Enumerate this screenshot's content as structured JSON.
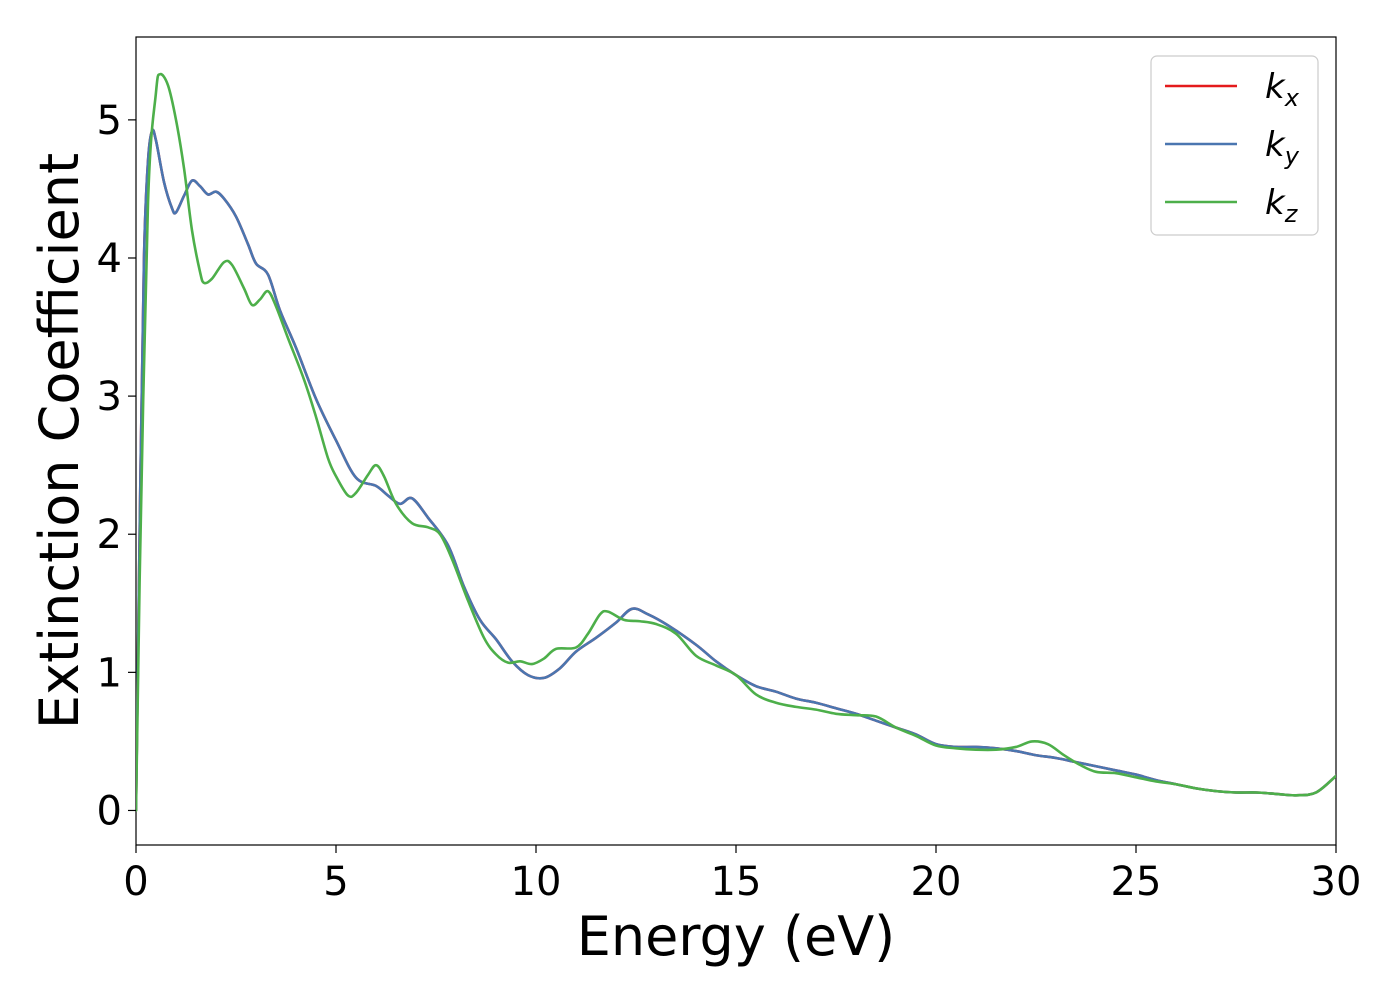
{
  "chart_data": {
    "type": "line",
    "title": "",
    "xlabel": "Energy (eV)",
    "ylabel": "Extinction Coefficient",
    "xlim": [
      0,
      30
    ],
    "ylim": [
      -0.25,
      5.6
    ],
    "xticks": [
      0,
      5,
      10,
      15,
      20,
      25,
      30
    ],
    "yticks": [
      0,
      1,
      2,
      3,
      4,
      5
    ],
    "grid": false,
    "legend_position": "top-right",
    "series": [
      {
        "name": "k_x",
        "base": "k",
        "sub": "x",
        "color": "#e41a1c",
        "points": [
          [
            0,
            0
          ],
          [
            0.1,
            2.2
          ],
          [
            0.2,
            4.0
          ],
          [
            0.3,
            4.7
          ],
          [
            0.4,
            4.92
          ],
          [
            0.5,
            4.85
          ],
          [
            0.7,
            4.55
          ],
          [
            0.9,
            4.36
          ],
          [
            1.0,
            4.33
          ],
          [
            1.2,
            4.45
          ],
          [
            1.4,
            4.56
          ],
          [
            1.6,
            4.52
          ],
          [
            1.8,
            4.46
          ],
          [
            2.0,
            4.48
          ],
          [
            2.2,
            4.43
          ],
          [
            2.5,
            4.3
          ],
          [
            2.8,
            4.1
          ],
          [
            3.0,
            3.96
          ],
          [
            3.3,
            3.88
          ],
          [
            3.6,
            3.62
          ],
          [
            4.0,
            3.35
          ],
          [
            4.5,
            2.98
          ],
          [
            5.0,
            2.68
          ],
          [
            5.5,
            2.41
          ],
          [
            6.0,
            2.35
          ],
          [
            6.3,
            2.28
          ],
          [
            6.6,
            2.22
          ],
          [
            6.9,
            2.26
          ],
          [
            7.3,
            2.12
          ],
          [
            7.8,
            1.92
          ],
          [
            8.2,
            1.62
          ],
          [
            8.6,
            1.38
          ],
          [
            9.0,
            1.24
          ],
          [
            9.4,
            1.08
          ],
          [
            9.8,
            0.98
          ],
          [
            10.2,
            0.96
          ],
          [
            10.6,
            1.03
          ],
          [
            11.0,
            1.15
          ],
          [
            11.5,
            1.25
          ],
          [
            12.0,
            1.36
          ],
          [
            12.4,
            1.46
          ],
          [
            12.8,
            1.42
          ],
          [
            13.3,
            1.34
          ],
          [
            14.0,
            1.2
          ],
          [
            14.5,
            1.08
          ],
          [
            15.0,
            0.98
          ],
          [
            15.5,
            0.9
          ],
          [
            16.0,
            0.86
          ],
          [
            16.5,
            0.81
          ],
          [
            17.0,
            0.78
          ],
          [
            17.5,
            0.74
          ],
          [
            18.0,
            0.7
          ],
          [
            18.5,
            0.65
          ],
          [
            19.0,
            0.6
          ],
          [
            19.5,
            0.55
          ],
          [
            20.0,
            0.48
          ],
          [
            20.5,
            0.46
          ],
          [
            21.0,
            0.46
          ],
          [
            21.5,
            0.45
          ],
          [
            22.0,
            0.43
          ],
          [
            22.5,
            0.4
          ],
          [
            23.0,
            0.38
          ],
          [
            23.5,
            0.35
          ],
          [
            24.0,
            0.32
          ],
          [
            24.5,
            0.29
          ],
          [
            25.0,
            0.26
          ],
          [
            25.5,
            0.22
          ],
          [
            26.0,
            0.19
          ],
          [
            26.5,
            0.16
          ],
          [
            27.0,
            0.14
          ],
          [
            27.5,
            0.13
          ],
          [
            28.0,
            0.13
          ],
          [
            28.5,
            0.12
          ],
          [
            29.0,
            0.11
          ],
          [
            29.5,
            0.13
          ],
          [
            30.0,
            0.25
          ]
        ]
      },
      {
        "name": "k_y",
        "base": "k",
        "sub": "y",
        "color": "#4a76b0",
        "points": [
          [
            0,
            0
          ],
          [
            0.1,
            2.2
          ],
          [
            0.2,
            4.0
          ],
          [
            0.3,
            4.7
          ],
          [
            0.4,
            4.92
          ],
          [
            0.5,
            4.85
          ],
          [
            0.7,
            4.55
          ],
          [
            0.9,
            4.36
          ],
          [
            1.0,
            4.33
          ],
          [
            1.2,
            4.45
          ],
          [
            1.4,
            4.56
          ],
          [
            1.6,
            4.52
          ],
          [
            1.8,
            4.46
          ],
          [
            2.0,
            4.48
          ],
          [
            2.2,
            4.43
          ],
          [
            2.5,
            4.3
          ],
          [
            2.8,
            4.1
          ],
          [
            3.0,
            3.96
          ],
          [
            3.3,
            3.88
          ],
          [
            3.6,
            3.62
          ],
          [
            4.0,
            3.35
          ],
          [
            4.5,
            2.98
          ],
          [
            5.0,
            2.68
          ],
          [
            5.5,
            2.41
          ],
          [
            6.0,
            2.35
          ],
          [
            6.3,
            2.28
          ],
          [
            6.6,
            2.22
          ],
          [
            6.9,
            2.26
          ],
          [
            7.3,
            2.12
          ],
          [
            7.8,
            1.92
          ],
          [
            8.2,
            1.62
          ],
          [
            8.6,
            1.38
          ],
          [
            9.0,
            1.24
          ],
          [
            9.4,
            1.08
          ],
          [
            9.8,
            0.98
          ],
          [
            10.2,
            0.96
          ],
          [
            10.6,
            1.03
          ],
          [
            11.0,
            1.15
          ],
          [
            11.5,
            1.25
          ],
          [
            12.0,
            1.36
          ],
          [
            12.4,
            1.46
          ],
          [
            12.8,
            1.42
          ],
          [
            13.3,
            1.34
          ],
          [
            14.0,
            1.2
          ],
          [
            14.5,
            1.08
          ],
          [
            15.0,
            0.98
          ],
          [
            15.5,
            0.9
          ],
          [
            16.0,
            0.86
          ],
          [
            16.5,
            0.81
          ],
          [
            17.0,
            0.78
          ],
          [
            17.5,
            0.74
          ],
          [
            18.0,
            0.7
          ],
          [
            18.5,
            0.65
          ],
          [
            19.0,
            0.6
          ],
          [
            19.5,
            0.55
          ],
          [
            20.0,
            0.48
          ],
          [
            20.5,
            0.46
          ],
          [
            21.0,
            0.46
          ],
          [
            21.5,
            0.45
          ],
          [
            22.0,
            0.43
          ],
          [
            22.5,
            0.4
          ],
          [
            23.0,
            0.38
          ],
          [
            23.5,
            0.35
          ],
          [
            24.0,
            0.32
          ],
          [
            24.5,
            0.29
          ],
          [
            25.0,
            0.26
          ],
          [
            25.5,
            0.22
          ],
          [
            26.0,
            0.19
          ],
          [
            26.5,
            0.16
          ],
          [
            27.0,
            0.14
          ],
          [
            27.5,
            0.13
          ],
          [
            28.0,
            0.13
          ],
          [
            28.5,
            0.12
          ],
          [
            29.0,
            0.11
          ],
          [
            29.5,
            0.13
          ],
          [
            30.0,
            0.25
          ]
        ]
      },
      {
        "name": "k_z",
        "base": "k",
        "sub": "z",
        "color": "#4daf4a",
        "points": [
          [
            0,
            0
          ],
          [
            0.1,
            1.8
          ],
          [
            0.3,
            4.4
          ],
          [
            0.5,
            5.2
          ],
          [
            0.6,
            5.33
          ],
          [
            0.8,
            5.25
          ],
          [
            1.0,
            5.0
          ],
          [
            1.2,
            4.65
          ],
          [
            1.4,
            4.2
          ],
          [
            1.6,
            3.9
          ],
          [
            1.7,
            3.82
          ],
          [
            1.9,
            3.85
          ],
          [
            2.2,
            3.97
          ],
          [
            2.4,
            3.95
          ],
          [
            2.7,
            3.78
          ],
          [
            2.9,
            3.66
          ],
          [
            3.1,
            3.7
          ],
          [
            3.3,
            3.76
          ],
          [
            3.5,
            3.65
          ],
          [
            3.8,
            3.42
          ],
          [
            4.2,
            3.12
          ],
          [
            4.5,
            2.85
          ],
          [
            4.8,
            2.55
          ],
          [
            5.0,
            2.42
          ],
          [
            5.3,
            2.28
          ],
          [
            5.5,
            2.3
          ],
          [
            5.8,
            2.43
          ],
          [
            6.0,
            2.5
          ],
          [
            6.2,
            2.42
          ],
          [
            6.5,
            2.22
          ],
          [
            6.9,
            2.08
          ],
          [
            7.3,
            2.05
          ],
          [
            7.6,
            2.0
          ],
          [
            7.9,
            1.82
          ],
          [
            8.3,
            1.52
          ],
          [
            8.7,
            1.25
          ],
          [
            9.0,
            1.13
          ],
          [
            9.3,
            1.07
          ],
          [
            9.6,
            1.08
          ],
          [
            9.9,
            1.06
          ],
          [
            10.2,
            1.1
          ],
          [
            10.5,
            1.17
          ],
          [
            11.0,
            1.18
          ],
          [
            11.3,
            1.28
          ],
          [
            11.6,
            1.42
          ],
          [
            11.8,
            1.44
          ],
          [
            12.2,
            1.38
          ],
          [
            12.6,
            1.37
          ],
          [
            13.0,
            1.35
          ],
          [
            13.5,
            1.28
          ],
          [
            14.0,
            1.12
          ],
          [
            14.5,
            1.05
          ],
          [
            15.0,
            0.98
          ],
          [
            15.5,
            0.84
          ],
          [
            16.0,
            0.78
          ],
          [
            16.5,
            0.75
          ],
          [
            17.0,
            0.73
          ],
          [
            17.5,
            0.7
          ],
          [
            18.0,
            0.69
          ],
          [
            18.5,
            0.68
          ],
          [
            19.0,
            0.6
          ],
          [
            19.5,
            0.54
          ],
          [
            20.0,
            0.47
          ],
          [
            20.5,
            0.45
          ],
          [
            21.0,
            0.44
          ],
          [
            21.5,
            0.44
          ],
          [
            22.0,
            0.46
          ],
          [
            22.4,
            0.5
          ],
          [
            22.8,
            0.48
          ],
          [
            23.2,
            0.4
          ],
          [
            23.6,
            0.33
          ],
          [
            24.0,
            0.28
          ],
          [
            24.5,
            0.27
          ],
          [
            25.0,
            0.24
          ],
          [
            25.5,
            0.21
          ],
          [
            26.0,
            0.19
          ],
          [
            26.5,
            0.16
          ],
          [
            27.0,
            0.14
          ],
          [
            27.5,
            0.13
          ],
          [
            28.0,
            0.13
          ],
          [
            28.5,
            0.12
          ],
          [
            29.0,
            0.11
          ],
          [
            29.5,
            0.13
          ],
          [
            30.0,
            0.25
          ]
        ]
      }
    ]
  }
}
